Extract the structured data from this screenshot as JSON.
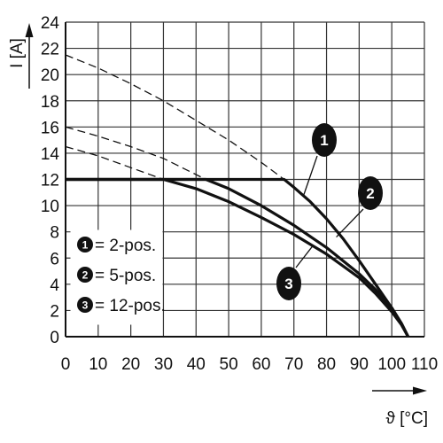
{
  "chart_data": {
    "type": "line",
    "xlabel": "ϑ [°C]",
    "ylabel": "I [A]",
    "xlim": [
      0,
      110
    ],
    "ylim": [
      0,
      24
    ],
    "xticks": [
      0,
      10,
      20,
      30,
      40,
      50,
      60,
      70,
      80,
      90,
      100,
      110
    ],
    "yticks": [
      0,
      2,
      4,
      6,
      8,
      10,
      12,
      14,
      16,
      18,
      20,
      22,
      24
    ],
    "grid": true,
    "legend_placement": "bottom-left",
    "line_color": "#111111",
    "series": [
      {
        "name": "2-pos.",
        "marker": "1",
        "points": [
          [
            0,
            12
          ],
          [
            67,
            12
          ],
          [
            70,
            11.4
          ],
          [
            75,
            10.3
          ],
          [
            80,
            9.0
          ],
          [
            85,
            7.5
          ],
          [
            90,
            5.8
          ],
          [
            95,
            4.0
          ],
          [
            100,
            2.2
          ],
          [
            103,
            1.0
          ],
          [
            105,
            0
          ]
        ],
        "dashed_points": [
          [
            0,
            21.5
          ],
          [
            10,
            20.5
          ],
          [
            20,
            19.3
          ],
          [
            30,
            18.0
          ],
          [
            40,
            16.5
          ],
          [
            50,
            15.0
          ],
          [
            60,
            13.3
          ],
          [
            67,
            12
          ]
        ]
      },
      {
        "name": "5-pos.",
        "marker": "2",
        "points": [
          [
            0,
            12
          ],
          [
            43,
            12
          ],
          [
            50,
            11.3
          ],
          [
            60,
            10.0
          ],
          [
            70,
            8.5
          ],
          [
            80,
            6.8
          ],
          [
            90,
            4.8
          ],
          [
            95,
            3.6
          ],
          [
            100,
            2.2
          ],
          [
            103,
            1.0
          ],
          [
            105,
            0
          ]
        ],
        "dashed_points": [
          [
            0,
            16.0
          ],
          [
            10,
            15.3
          ],
          [
            20,
            14.5
          ],
          [
            30,
            13.6
          ],
          [
            43,
            12
          ]
        ]
      },
      {
        "name": "12-pos.",
        "marker": "3",
        "points": [
          [
            0,
            12
          ],
          [
            30,
            12
          ],
          [
            40,
            11.3
          ],
          [
            50,
            10.3
          ],
          [
            60,
            9.1
          ],
          [
            70,
            7.8
          ],
          [
            80,
            6.3
          ],
          [
            90,
            4.5
          ],
          [
            95,
            3.3
          ],
          [
            100,
            1.9
          ],
          [
            103,
            0.9
          ],
          [
            105,
            0
          ]
        ],
        "dashed_points": [
          [
            0,
            14.5
          ],
          [
            10,
            13.8
          ],
          [
            20,
            12.9
          ],
          [
            30,
            12
          ]
        ]
      }
    ],
    "legend": [
      {
        "marker": "1",
        "text": "= 2-pos."
      },
      {
        "marker": "2",
        "text": "= 5-pos."
      },
      {
        "marker": "3",
        "text": "= 12-pos."
      }
    ]
  }
}
